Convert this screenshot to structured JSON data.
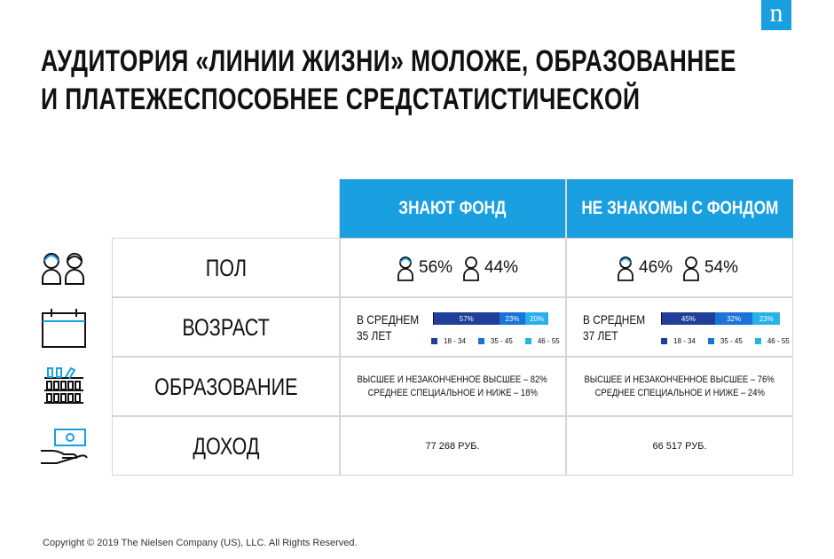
{
  "brand": {
    "logo_letter": "n",
    "color": "#1a9fe0"
  },
  "title": {
    "line1": "АУДИТОРИЯ «ЛИНИИ ЖИЗНИ» МОЛОЖЕ, ОБРАЗОВАННЕЕ",
    "line2": "И ПЛАТЕЖЕСПОСОБНЕЕ СРЕДСТАТИСТИЧЕСКОЙ"
  },
  "columns": [
    {
      "header": "ЗНАЮТ ФОНД"
    },
    {
      "header": "НЕ ЗНАКОМЫ С ФОНДОМ"
    }
  ],
  "rows": {
    "gender": {
      "label": "ПОЛ",
      "icon": "couple-icon",
      "values": [
        {
          "female": "56%",
          "male": "44%"
        },
        {
          "female": "46%",
          "male": "54%"
        }
      ]
    },
    "age": {
      "label": "ВОЗРАСТ",
      "icon": "calendar-icon",
      "values": [
        {
          "line1": "В СРЕДНЕМ",
          "line2": "35 ЛЕТ",
          "segments": [
            {
              "share": 57,
              "text": "57%"
            },
            {
              "share": 23,
              "text": "23%"
            },
            {
              "share": 20,
              "text": "20%"
            }
          ]
        },
        {
          "line1": "В СРЕДНЕМ",
          "line2": "37 ЛЕТ",
          "segments": [
            {
              "share": 45,
              "text": "45%"
            },
            {
              "share": 32,
              "text": "32%"
            },
            {
              "share": 23,
              "text": "23%"
            }
          ]
        }
      ],
      "legend": [
        {
          "label": "18 - 34",
          "color": "#1f3f9a"
        },
        {
          "label": "35 - 45",
          "color": "#1a73d9"
        },
        {
          "label": "46 - 55",
          "color": "#27b1ea"
        }
      ]
    },
    "education": {
      "label": "ОБРАЗОВАНИЕ",
      "icon": "books-icon",
      "values": [
        {
          "line1": "ВЫСШЕЕ И НЕЗАКОНЧЕННОЕ ВЫСШЕЕ – 82%",
          "line2": "СРЕДНЕЕ СПЕЦИАЛЬНОЕ И НИЖЕ – 18%"
        },
        {
          "line1": "ВЫСШЕЕ И НЕЗАКОНЧЕННОЕ ВЫСШЕЕ – 76%",
          "line2": "СРЕДНЕЕ СПЕЦИАЛЬНОЕ И НИЖЕ – 24%"
        }
      ]
    },
    "income": {
      "label": "ДОХОД",
      "icon": "money-hand-icon",
      "values": [
        "77 268 РУБ.",
        "66 517 РУБ."
      ]
    }
  },
  "footer": {
    "copyright": "Copyright © 2019 The Nielsen Company (US), LLC. All Rights Reserved."
  }
}
